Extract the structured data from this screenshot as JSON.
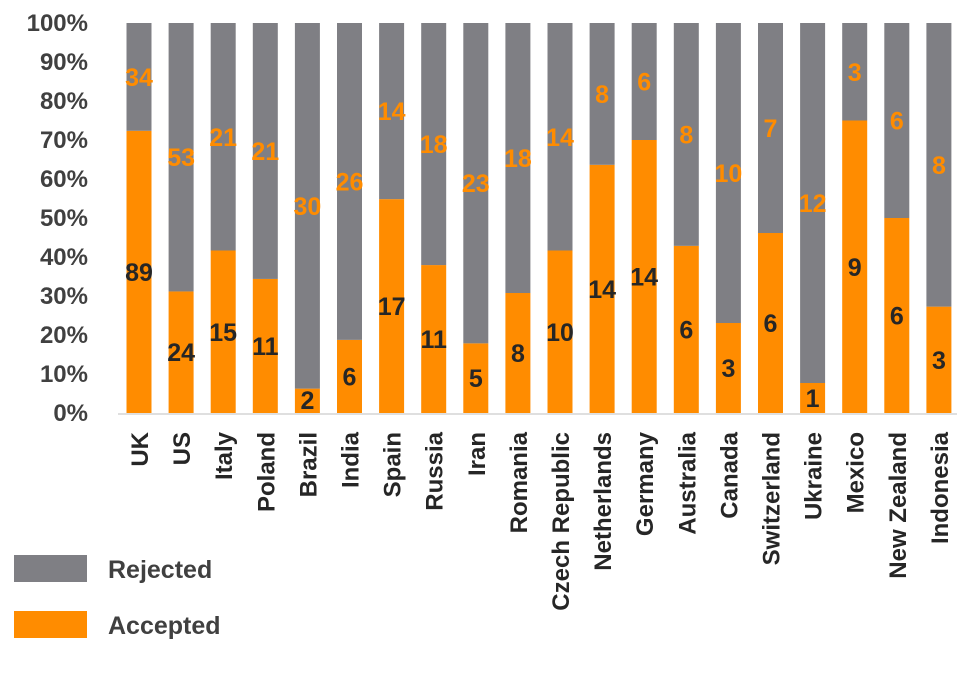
{
  "chart_data": {
    "type": "bar",
    "stacked": true,
    "normalized": true,
    "categories": [
      "UK",
      "US",
      "Italy",
      "Poland",
      "Brazil",
      "India",
      "Spain",
      "Russia",
      "Iran",
      "Romania",
      "Czech Republic",
      "Netherlands",
      "Germany",
      "Australia",
      "Canada",
      "Switzerland",
      "Ukraine",
      "Mexico",
      "New Zealand",
      "Indonesia"
    ],
    "series": [
      {
        "name": "Accepted",
        "color": "#FF8C00",
        "values": [
          89,
          24,
          15,
          11,
          2,
          6,
          17,
          11,
          5,
          8,
          10,
          14,
          14,
          6,
          3,
          6,
          1,
          9,
          6,
          3
        ]
      },
      {
        "name": "Rejected",
        "color": "#7F7F84",
        "values": [
          34,
          53,
          21,
          21,
          30,
          26,
          14,
          18,
          23,
          18,
          14,
          8,
          6,
          8,
          10,
          7,
          12,
          3,
          6,
          8
        ]
      }
    ],
    "yticks": [
      "0%",
      "10%",
      "20%",
      "30%",
      "40%",
      "50%",
      "60%",
      "70%",
      "80%",
      "90%",
      "100%"
    ],
    "ylim": [
      0,
      100
    ],
    "grid": false,
    "legend_position": "bottom-left",
    "label_colors": {
      "accepted": "#262626",
      "rejected": "#FF8C00"
    }
  }
}
